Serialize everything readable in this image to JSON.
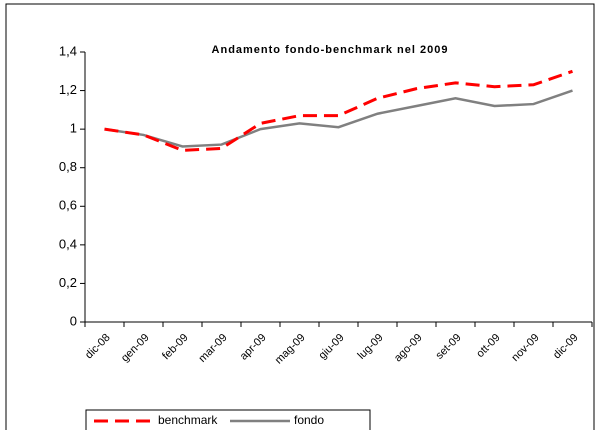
{
  "chart_data": {
    "type": "line",
    "title": "Andamento fondo-benchmark nel 2009",
    "categories": [
      "dic-08",
      "gen-09",
      "feb-09",
      "mar-09",
      "apr-09",
      "mag-09",
      "giu-09",
      "lug-09",
      "ago-09",
      "set-09",
      "ott-09",
      "nov-09",
      "dic-09"
    ],
    "series": [
      {
        "name": "benchmark",
        "color": "#ff0000",
        "values": [
          1.0,
          0.97,
          0.89,
          0.9,
          1.03,
          1.07,
          1.07,
          1.16,
          1.21,
          1.24,
          1.22,
          1.23,
          1.3
        ]
      },
      {
        "name": "fondo",
        "color": "#808080",
        "values": [
          1.0,
          0.97,
          0.91,
          0.92,
          1.0,
          1.03,
          1.01,
          1.08,
          1.12,
          1.16,
          1.12,
          1.13,
          1.2
        ]
      }
    ],
    "ylim": [
      0,
      1.4
    ],
    "yticks": [
      0,
      {
        "value": 0.2,
        "label": "0,2"
      },
      {
        "value": 0.4,
        "label": "0,4"
      },
      {
        "value": 0.6,
        "label": "0,6"
      },
      {
        "value": 0.8,
        "label": "0,8"
      },
      1,
      {
        "value": 1.2,
        "label": "1,2"
      },
      {
        "value": 1.4,
        "label": "1,4"
      }
    ],
    "grid": false
  }
}
